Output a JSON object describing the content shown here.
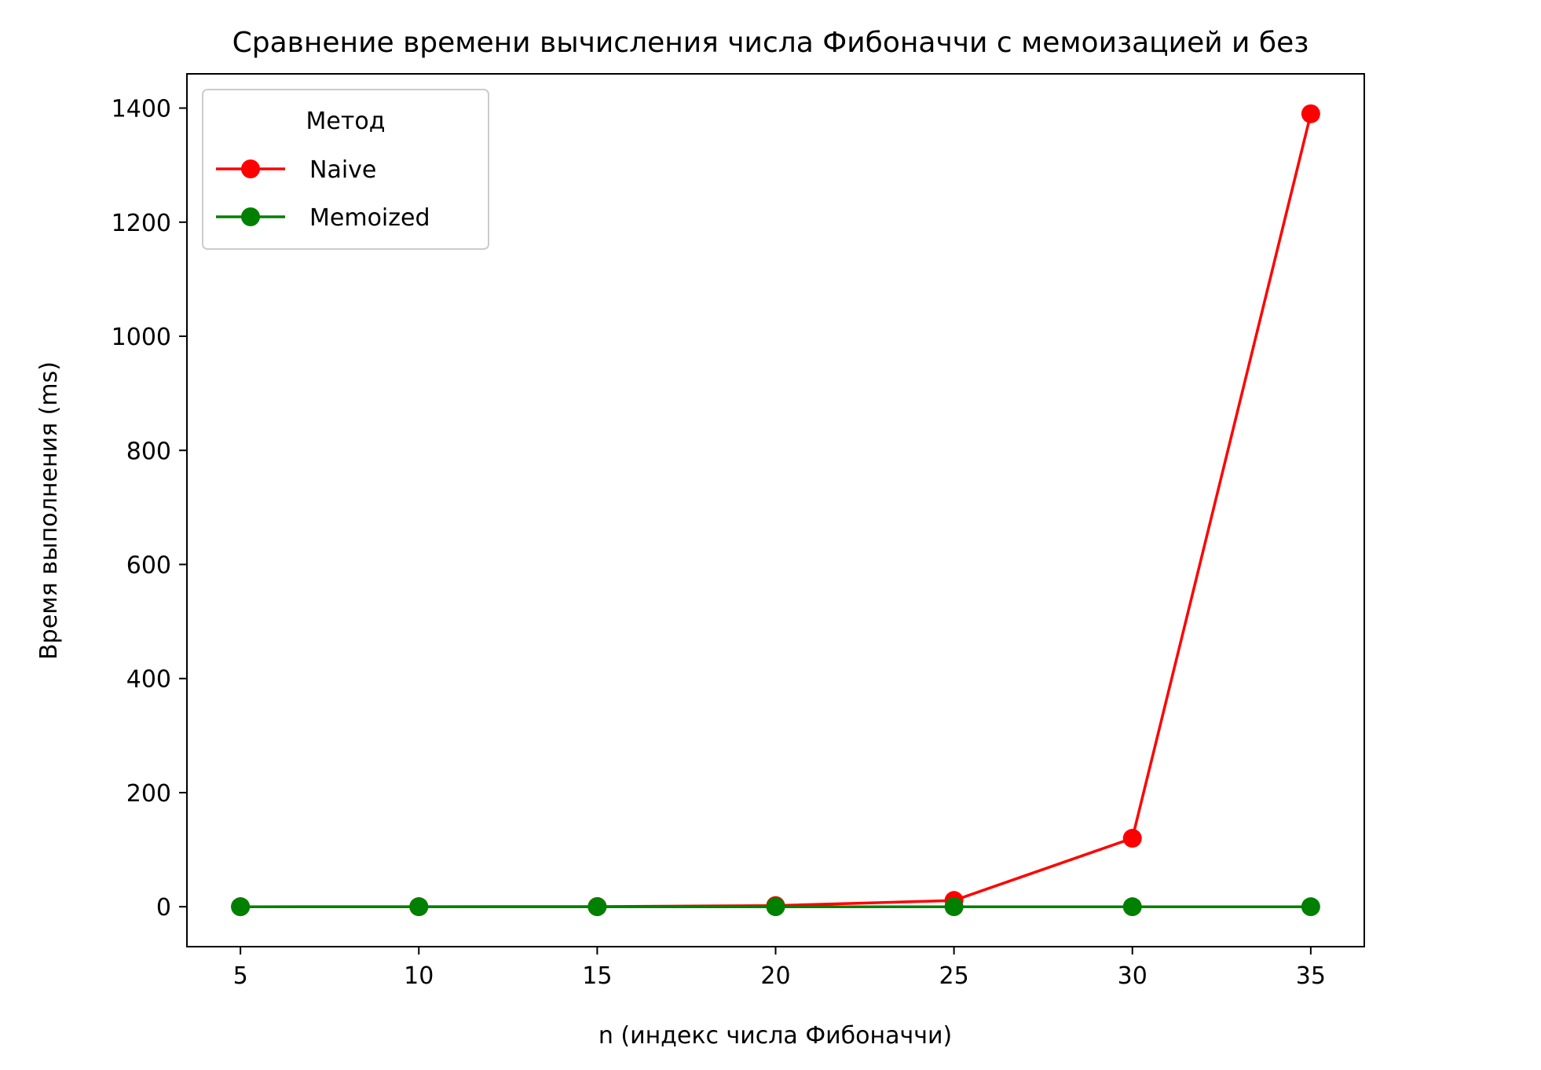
{
  "chart_data": {
    "type": "line",
    "title": "Сравнение времени вычисления числа Фибоначчи с мемоизацией и без",
    "xlabel": "n (индекс числа Фибоначчи)",
    "ylabel": "Время выполнения (ms)",
    "x": [
      5,
      10,
      15,
      20,
      25,
      30,
      35
    ],
    "xlim": [
      3.5,
      36.5
    ],
    "ylim": [
      -70,
      1460
    ],
    "xticks": [
      5,
      10,
      15,
      20,
      25,
      30,
      35
    ],
    "yticks": [
      0,
      200,
      400,
      600,
      800,
      1000,
      1200,
      1400
    ],
    "grid": false,
    "legend": {
      "title": "Метод",
      "placement": "top-left"
    },
    "series": [
      {
        "name": "Naive",
        "color": "#ff0000",
        "marker": "circle",
        "values": [
          0.0,
          0.1,
          0.3,
          2,
          11,
          120,
          1390
        ]
      },
      {
        "name": "Memoized",
        "color": "#008000",
        "marker": "circle",
        "values": [
          0.0,
          0.0,
          0.0,
          0.0,
          0.0,
          0.0,
          0.0
        ]
      }
    ]
  }
}
